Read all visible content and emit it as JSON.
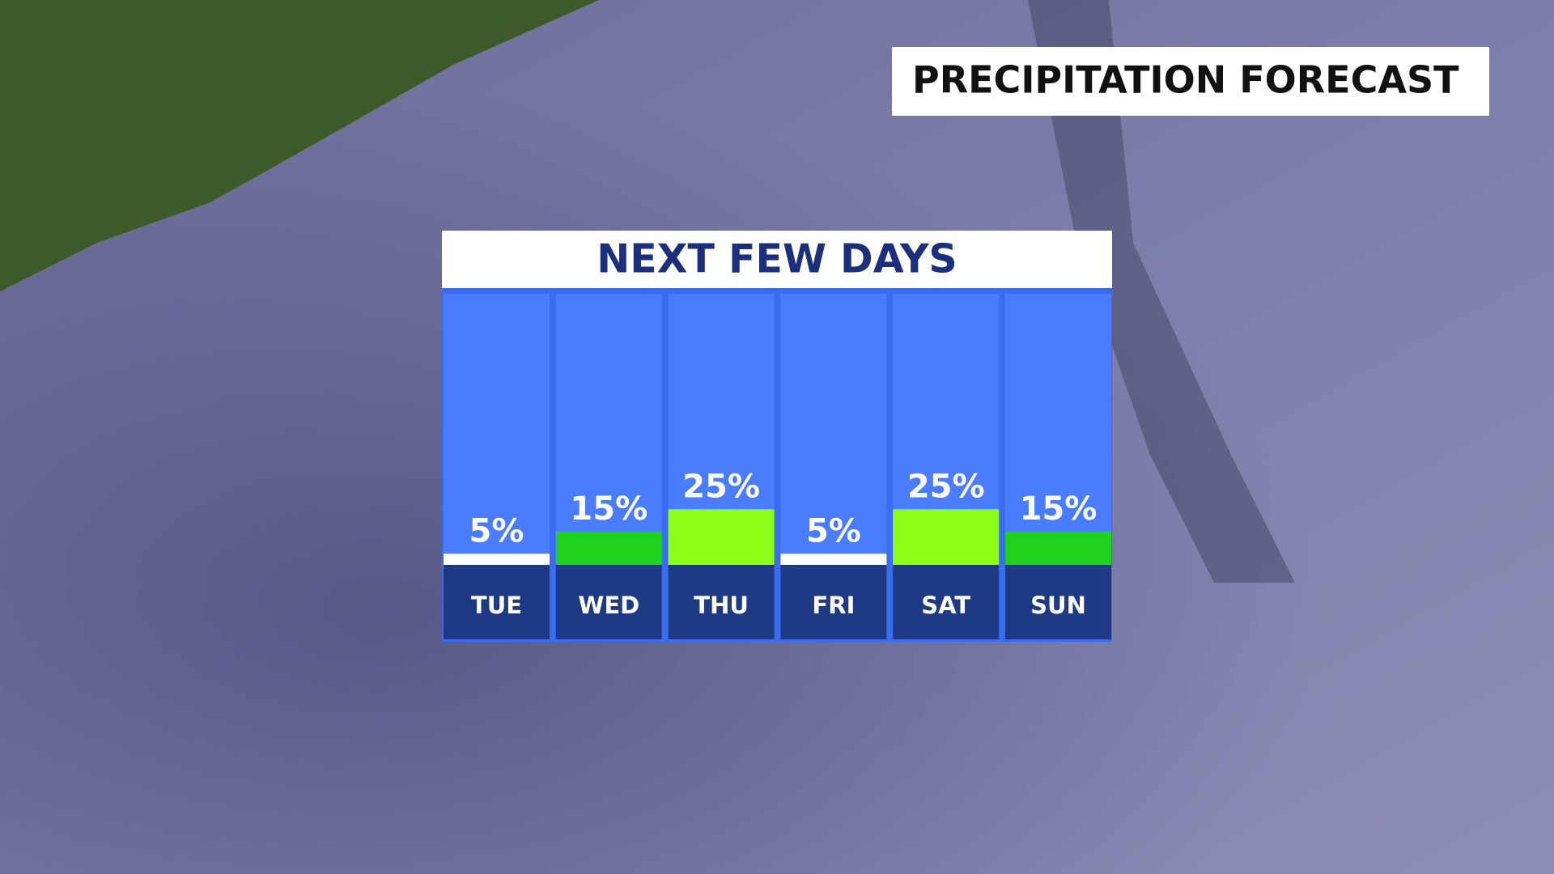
{
  "chart_data": {
    "type": "bar",
    "header": "PRECIPITATION FORECAST",
    "title": "NEXT FEW DAYS",
    "categories": [
      "TUE",
      "WED",
      "THU",
      "FRI",
      "SAT",
      "SUN"
    ],
    "values": [
      5,
      15,
      25,
      5,
      25,
      15
    ],
    "value_labels": [
      "5%",
      "15%",
      "25%",
      "5%",
      "25%",
      "15%"
    ],
    "colors": [
      "#ffffff",
      "#1ed21e",
      "#8cff18",
      "#ffffff",
      "#8cff18",
      "#1ed21e"
    ]
  }
}
